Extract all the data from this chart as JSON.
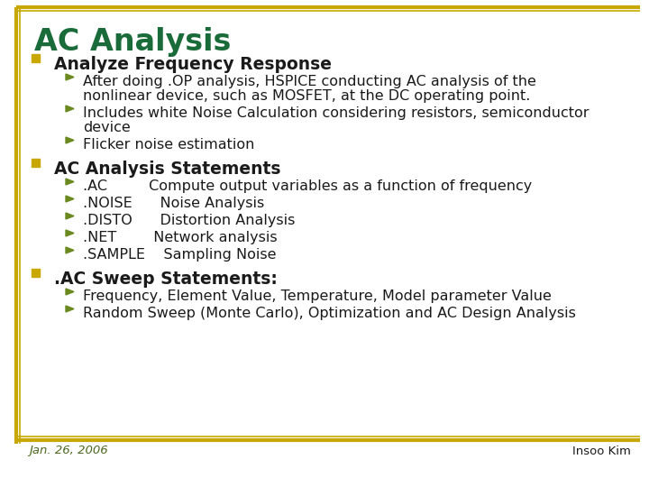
{
  "title": "AC Analysis",
  "title_color": "#1a6b3a",
  "background_color": "#ffffff",
  "border_color": "#c8a800",
  "bullet_color": "#c8a800",
  "sub_bullet_color": "#6a8a20",
  "text_color": "#1a1a1a",
  "footer_color": "#4a6a20",
  "footer_left": "Jan. 26, 2006",
  "footer_right": "Insoo Kim",
  "bullets": [
    {
      "text": "Analyze Frequency Response",
      "sub_bullets": [
        [
          "After doing .OP analysis, HSPICE conducting AC analysis of the",
          "nonlinear device, such as MOSFET, at the DC operating point."
        ],
        [
          "Includes white Noise Calculation considering resistors, semiconductor",
          "device"
        ],
        [
          "Flicker noise estimation"
        ]
      ]
    },
    {
      "text": "AC Analysis Statements",
      "sub_bullets": [
        [
          ".AC         Compute output variables as a function of frequency"
        ],
        [
          ".NOISE      Noise Analysis"
        ],
        [
          ".DISTO      Distortion Analysis"
        ],
        [
          ".NET        Network analysis"
        ],
        [
          ".SAMPLE    Sampling Noise"
        ]
      ]
    },
    {
      "text": ".AC Sweep Statements:",
      "sub_bullets": [
        [
          "Frequency, Element Value, Temperature, Model parameter Value"
        ],
        [
          "Random Sweep (Monte Carlo), Optimization and AC Design Analysis"
        ]
      ]
    }
  ]
}
